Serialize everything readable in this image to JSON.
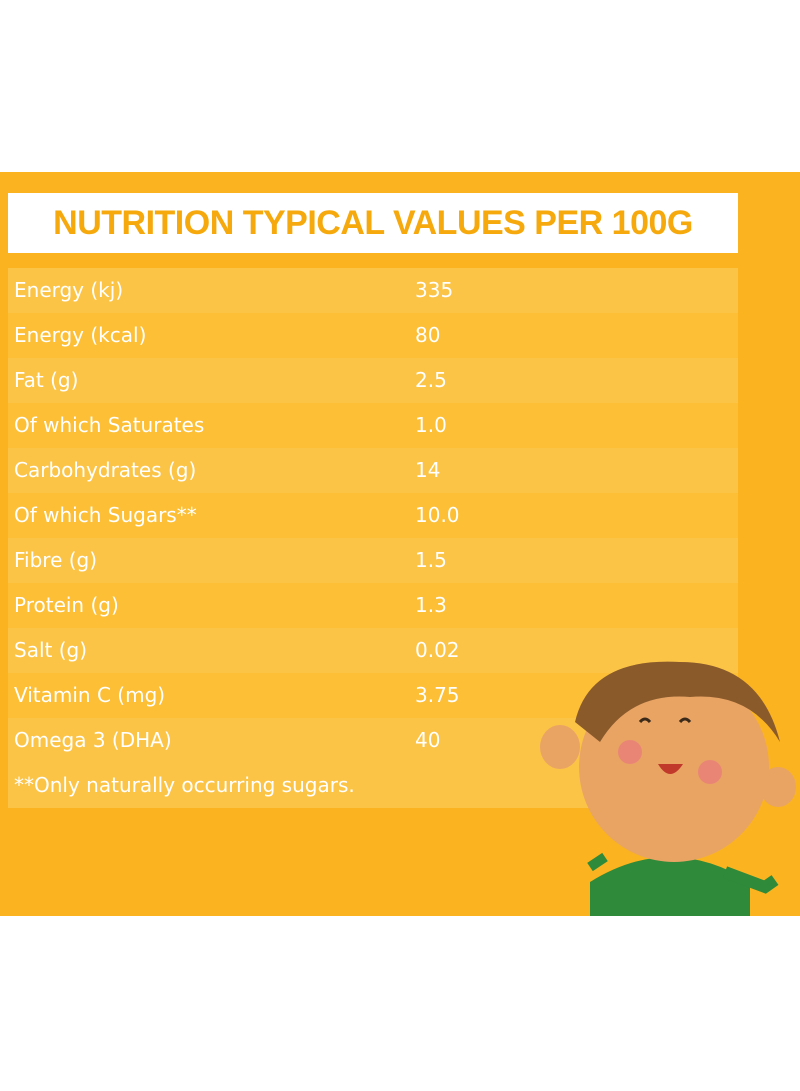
{
  "header": {
    "title": "NUTRITION TYPICAL VALUES PER 100G"
  },
  "table": {
    "rows": [
      [
        "Energy (kj)",
        "335"
      ],
      [
        "Energy (kcal)",
        "80"
      ],
      [
        "Fat (g)",
        "2.5"
      ],
      [
        "Of which Saturates",
        "1.0"
      ],
      [
        "Carbohydrates (g)",
        "14"
      ],
      [
        "Of which Sugars**",
        "10.0"
      ],
      [
        "Fibre (g)",
        "1.5"
      ],
      [
        "Protein (g)",
        "1.3"
      ],
      [
        "Salt (g)",
        "0.02"
      ],
      [
        "Vitamin C (mg)",
        "3.75"
      ],
      [
        "Omega 3 (DHA)",
        "40"
      ]
    ]
  },
  "footnote": "**Only naturally occurring sugars."
}
